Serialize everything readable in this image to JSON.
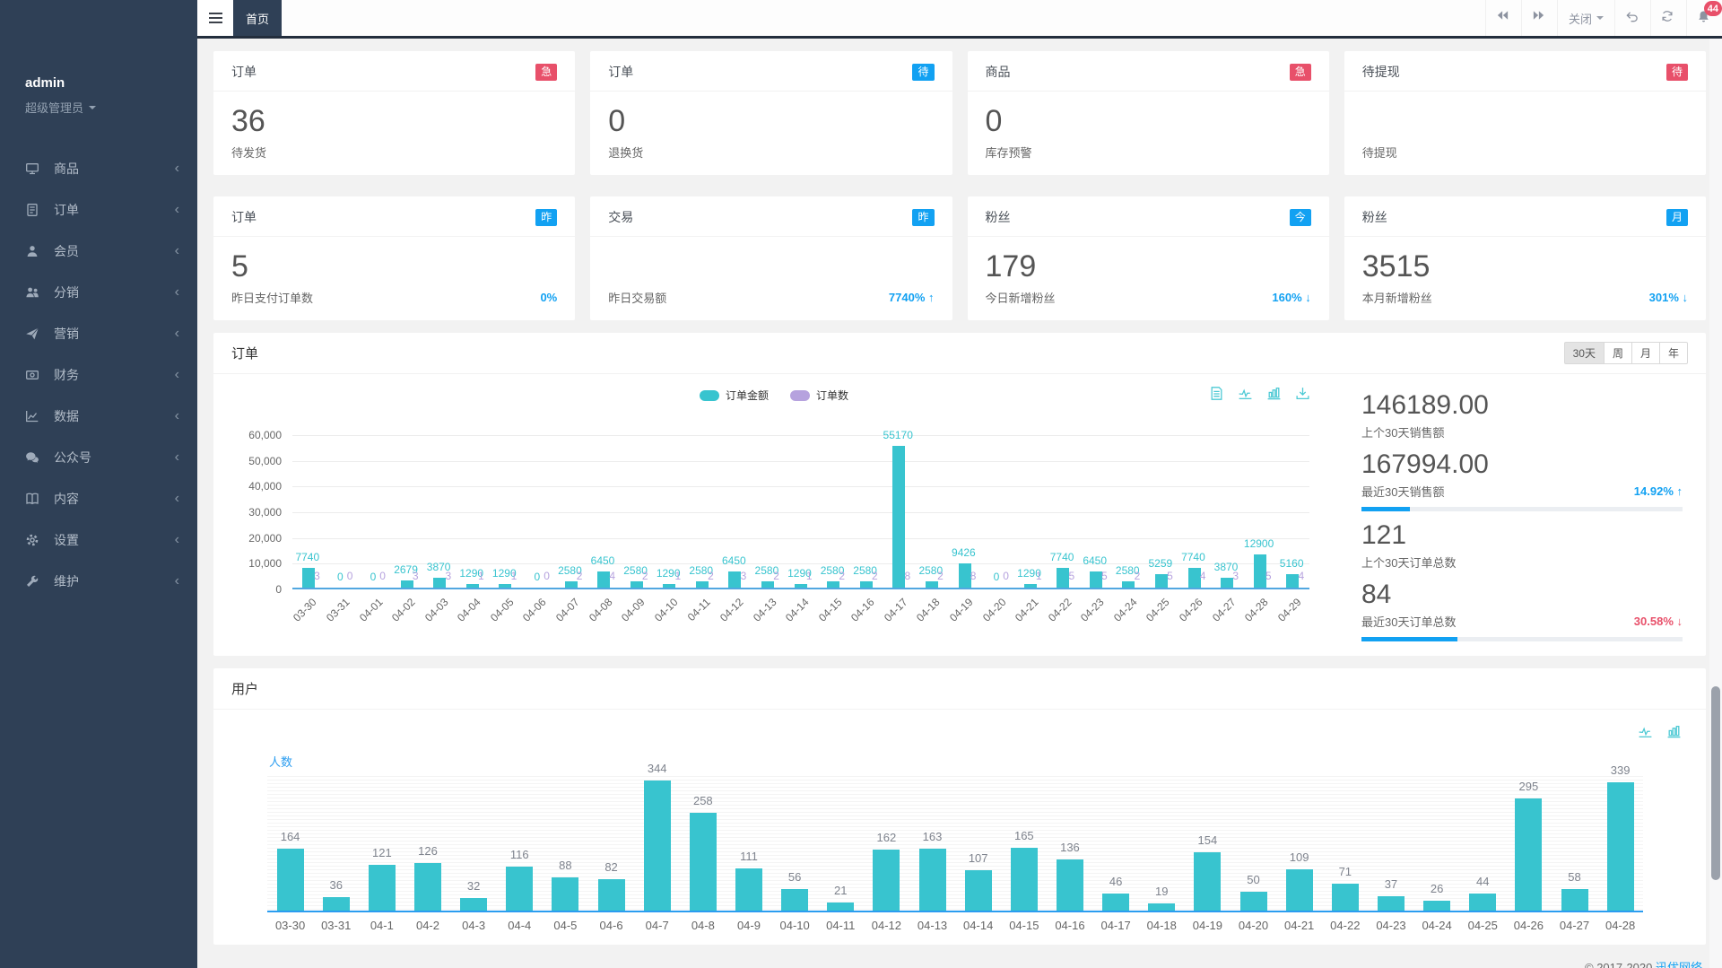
{
  "colors": {
    "teal": "#38c4cf",
    "purple": "#b6a2de",
    "blue": "#12a1f2",
    "red": "#e8506a",
    "sidebar_bg": "#2f4056"
  },
  "topbar": {
    "tab": "首页",
    "close_label": "关闭",
    "bell_badge": "44"
  },
  "sidebar": {
    "username": "admin",
    "role": "超级管理员",
    "items": [
      {
        "icon": "goods-icon",
        "label": "商品"
      },
      {
        "icon": "orders-icon",
        "label": "订单"
      },
      {
        "icon": "members-icon",
        "label": "会员"
      },
      {
        "icon": "distribution-icon",
        "label": "分销"
      },
      {
        "icon": "marketing-icon",
        "label": "营销"
      },
      {
        "icon": "finance-icon",
        "label": "财务"
      },
      {
        "icon": "data-icon",
        "label": "数据"
      },
      {
        "icon": "official-account-icon",
        "label": "公众号"
      },
      {
        "icon": "content-icon",
        "label": "内容"
      },
      {
        "icon": "settings-icon",
        "label": "设置"
      },
      {
        "icon": "maintenance-icon",
        "label": "维护"
      }
    ]
  },
  "stat_rows": [
    [
      {
        "title": "订单",
        "badge": "急",
        "badge_color": "#e8506a",
        "value": "36",
        "label": "待发货",
        "percent": "",
        "percent_color": ""
      },
      {
        "title": "订单",
        "badge": "待",
        "badge_color": "#12a1f2",
        "value": "0",
        "label": "退换货",
        "percent": "",
        "percent_color": ""
      },
      {
        "title": "商品",
        "badge": "急",
        "badge_color": "#e8506a",
        "value": "0",
        "label": "库存预警",
        "percent": "",
        "percent_color": ""
      },
      {
        "title": "待提现",
        "badge": "待",
        "badge_color": "#e8506a",
        "value": "",
        "label": "待提现",
        "percent": "",
        "percent_color": ""
      }
    ],
    [
      {
        "title": "订单",
        "badge": "昨",
        "badge_color": "#12a1f2",
        "value": "5",
        "label": "昨日支付订单数",
        "percent": "0%",
        "percent_color": "#12a1f2"
      },
      {
        "title": "交易",
        "badge": "昨",
        "badge_color": "#12a1f2",
        "value": "",
        "label": "昨日交易额",
        "percent": "7740% ↑",
        "percent_color": "#12a1f2"
      },
      {
        "title": "粉丝",
        "badge": "今",
        "badge_color": "#12a1f2",
        "value": "179",
        "label": "今日新增粉丝",
        "percent": "160% ↓",
        "percent_color": "#12a1f2"
      },
      {
        "title": "粉丝",
        "badge": "月",
        "badge_color": "#12a1f2",
        "value": "3515",
        "label": "本月新增粉丝",
        "percent": "301% ↓",
        "percent_color": "#12a1f2"
      }
    ]
  ],
  "order_panel": {
    "title": "订单",
    "period_tabs": [
      "30天",
      "周",
      "月",
      "年"
    ],
    "active_tab": 0,
    "toolbox": [
      "data-view-icon",
      "line-chart-icon",
      "bar-chart-icon",
      "download-icon"
    ],
    "stats": [
      {
        "value": "146189.00",
        "label": "上个30天销售额",
        "percent": "",
        "percent_color": "",
        "progress": null
      },
      {
        "value": "167994.00",
        "label": "最近30天销售额",
        "percent": "14.92% ↑",
        "percent_color": "#12a1f2",
        "progress": 15
      },
      {
        "value": "121",
        "label": "上个30天订单总数",
        "percent": "",
        "percent_color": "",
        "progress": null
      },
      {
        "value": "84",
        "label": "最近30天订单总数",
        "percent": "30.58% ↓",
        "percent_color": "#e8506a",
        "progress": 30
      }
    ],
    "chart_data": {
      "type": "bar",
      "title": "订单",
      "categories": [
        "03-30",
        "03-31",
        "04-01",
        "04-02",
        "04-03",
        "04-04",
        "04-05",
        "04-06",
        "04-07",
        "04-08",
        "04-09",
        "04-10",
        "04-11",
        "04-12",
        "04-13",
        "04-14",
        "04-15",
        "04-16",
        "04-17",
        "04-18",
        "04-19",
        "04-20",
        "04-21",
        "04-22",
        "04-23",
        "04-24",
        "04-25",
        "04-26",
        "04-27",
        "04-28",
        "04-29"
      ],
      "series": [
        {
          "name": "订单金额",
          "color": "#38c4cf",
          "values": [
            7740,
            0,
            0,
            2679,
            3870,
            1290,
            1290,
            0,
            2580,
            6450,
            2580,
            1290,
            2580,
            6450,
            2580,
            1290,
            2580,
            2580,
            55170,
            2580,
            9426,
            0,
            1290,
            7740,
            6450,
            2580,
            5259,
            7740,
            3870,
            12900,
            5160
          ]
        },
        {
          "name": "订单数",
          "color": "#b6a2de",
          "values": [
            3,
            0,
            0,
            3,
            3,
            1,
            1,
            0,
            2,
            4,
            2,
            1,
            2,
            3,
            2,
            1,
            2,
            2,
            8,
            2,
            8,
            0,
            1,
            5,
            5,
            2,
            5,
            4,
            3,
            5,
            4
          ]
        }
      ],
      "ylim": [
        0,
        60000
      ],
      "yticks": [
        "60,000",
        "50,000",
        "40,000",
        "30,000",
        "20,000",
        "10,000",
        "0"
      ],
      "grid": true,
      "legend_position": "top"
    }
  },
  "user_panel": {
    "title": "用户",
    "toolbox": [
      "line-chart-icon",
      "bar-chart-icon"
    ],
    "chart_data": {
      "type": "bar",
      "title": "用户",
      "ylabel": "人数",
      "categories": [
        "03-30",
        "03-31",
        "04-1",
        "04-2",
        "04-3",
        "04-4",
        "04-5",
        "04-6",
        "04-7",
        "04-8",
        "04-9",
        "04-10",
        "04-11",
        "04-12",
        "04-13",
        "04-14",
        "04-15",
        "04-16",
        "04-17",
        "04-18",
        "04-19",
        "04-20",
        "04-21",
        "04-22",
        "04-23",
        "04-24",
        "04-25",
        "04-26",
        "04-27",
        "04-28"
      ],
      "values": [
        164,
        36,
        121,
        126,
        32,
        116,
        88,
        82,
        344,
        258,
        111,
        56,
        21,
        162,
        163,
        107,
        165,
        136,
        46,
        19,
        154,
        50,
        109,
        71,
        37,
        26,
        44,
        295,
        58,
        339
      ],
      "ylim": [
        0,
        360
      ],
      "bar_color": "#38c4cf",
      "grid": false
    }
  },
  "footer": {
    "copyright": "© 2017-2020",
    "link": "迅优网络"
  }
}
